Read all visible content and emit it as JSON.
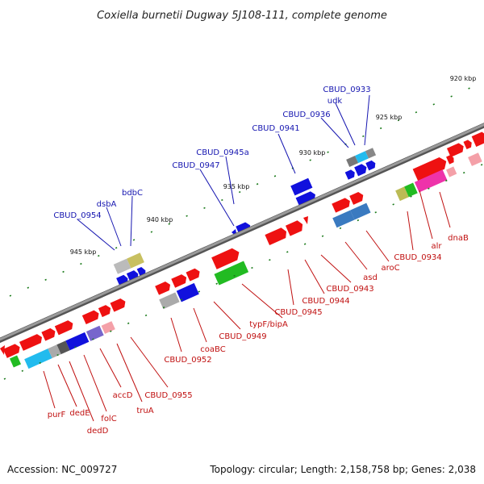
{
  "title": "Coxiella burnetii Dugway 5J108-111, complete genome",
  "footer": {
    "accession": "Accession: NC_009727",
    "summary": "Topology: circular; Length: 2,158,758 bp; Genes: 2,038"
  },
  "kbp_labels": [
    "920 kbp",
    "925 kbp",
    "930 kbp",
    "935 kbp",
    "940 kbp",
    "945 kbp"
  ],
  "top_labels": [
    "CBUD_0933",
    "udk",
    "CBUD_0936",
    "CBUD_0941",
    "CBUD_0945a",
    "CBUD_0947",
    "bdbC",
    "dsbA",
    "CBUD_0954"
  ],
  "bottom_labels": [
    "dnaB",
    "alr",
    "CBUD_0934",
    "aroC",
    "asd",
    "CBUD_0943",
    "CBUD_0944",
    "CBUD_0945",
    "typF/bipA",
    "CBUD_0949",
    "coaBC",
    "CBUD_0952",
    "CBUD_0955",
    "truA",
    "accD",
    "folC",
    "dedD",
    "dedE",
    "purF"
  ],
  "colors": {
    "backbone": "#8a8a8a",
    "forward_gene": "#ee1111",
    "reverse_gene": "#1111dd",
    "cyan_gene": "#22bbee",
    "green_gene": "#22bb22",
    "gray_gene": "#aaaaaa",
    "olive_gene": "#c8c060",
    "pink_gene": "#ee33aa",
    "tick": "#1a7a1a",
    "label_forward": "#c01010",
    "label_reverse": "#1515b0"
  }
}
